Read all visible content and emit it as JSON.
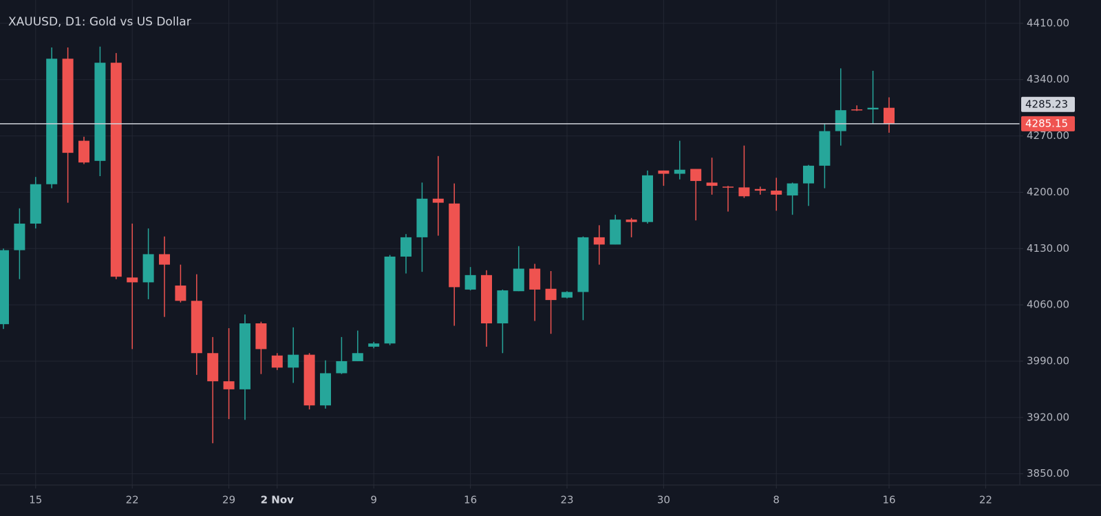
{
  "chart_data": {
    "type": "candlestick",
    "title": "XAUUSD, D1: Gold vs US Dollar",
    "categories": [
      null,
      null,
      "15",
      null,
      null,
      null,
      null,
      null,
      "22",
      null,
      null,
      null,
      null,
      null,
      "29",
      null,
      null,
      "2 Nov",
      null,
      null,
      null,
      null,
      null,
      "9",
      null,
      null,
      null,
      null,
      null,
      "16",
      null,
      null,
      null,
      null,
      null,
      "23",
      null,
      null,
      null,
      null,
      null,
      "30",
      null,
      null,
      null,
      null,
      null,
      null,
      "8",
      null,
      null,
      null,
      null,
      null,
      null,
      "16",
      null,
      null,
      null,
      null,
      null,
      "22"
    ],
    "open": [
      4036,
      4128,
      4161,
      4210,
      4366,
      4264,
      4239,
      4361,
      4094,
      4088,
      4123,
      4084,
      4065,
      4000,
      3965,
      3955,
      4037,
      3997,
      3982,
      3998,
      3935,
      3975,
      3990,
      4008,
      4012,
      4120,
      4144,
      4192,
      4186,
      4079,
      4097,
      4037,
      4077,
      4105,
      4080,
      4069,
      4076,
      4144,
      4135,
      4166,
      4163,
      4227,
      4223,
      4229,
      4212,
      4207,
      4206,
      4204,
      4202,
      4196,
      4211,
      4233,
      4276,
      4303,
      4303,
      4305,
      null,
      null,
      null,
      null,
      null,
      null
    ],
    "high": [
      4130,
      4180,
      4219,
      4380,
      4380,
      4269,
      4381,
      4373,
      4161,
      4155,
      4145,
      4110,
      4098,
      4020,
      4031,
      4048,
      4039,
      4000,
      4032,
      4000,
      3991,
      4020,
      4028,
      4014,
      4122,
      4148,
      4212,
      4245,
      4211,
      4107,
      4103,
      4079,
      4133,
      4111,
      4102,
      4077,
      4145,
      4159,
      4172,
      4168,
      4227,
      4227,
      4264,
      4229,
      4243,
      4208,
      4258,
      4207,
      4218,
      4212,
      4234,
      4285,
      4354,
      4308,
      4351,
      4318,
      null,
      null,
      null,
      null,
      null,
      null
    ],
    "low": [
      4030,
      4092,
      4155,
      4205,
      4187,
      4235,
      4220,
      4092,
      4005,
      4067,
      4045,
      4063,
      3973,
      3888,
      3918,
      3917,
      3974,
      3979,
      3963,
      3930,
      3931,
      3974,
      3990,
      4006,
      4010,
      4099,
      4101,
      4146,
      4034,
      4078,
      4008,
      4000,
      4077,
      4040,
      4024,
      4068,
      4041,
      4110,
      4135,
      4144,
      4161,
      4208,
      4216,
      4165,
      4197,
      4176,
      4193,
      4197,
      4177,
      4172,
      4183,
      4205,
      4258,
      4301,
      4285,
      4274,
      null,
      null,
      null,
      null,
      null,
      null
    ],
    "close": [
      4128,
      4161,
      4210,
      4366,
      4249,
      4237,
      4361,
      4095,
      4088,
      4123,
      4110,
      4065,
      4000,
      3965,
      3955,
      4037,
      4005,
      3982,
      3998,
      3935,
      3975,
      3990,
      4000,
      4012,
      4120,
      4144,
      4192,
      4187,
      4082,
      4097,
      4037,
      4078,
      4105,
      4079,
      4066,
      4076,
      4144,
      4135,
      4166,
      4163,
      4221,
      4223,
      4228,
      4214,
      4208,
      4206,
      4195,
      4202,
      4197,
      4211,
      4233,
      4276,
      4302,
      4302,
      4305,
      4285.15,
      null,
      null,
      null,
      null,
      null,
      null
    ],
    "up_color": "#26a69a",
    "down_color": "#ef5350",
    "ylim": [
      3836,
      4439
    ],
    "yticks": [
      {
        "value": 3850,
        "label": "3850.00"
      },
      {
        "value": 3920,
        "label": "3920.00"
      },
      {
        "value": 3990,
        "label": "3990.00"
      },
      {
        "value": 4060,
        "label": "4060.00"
      },
      {
        "value": 4130,
        "label": "4130.00"
      },
      {
        "value": 4200,
        "label": "4200.00"
      },
      {
        "value": 4270,
        "label": "4270.00"
      },
      {
        "value": 4340,
        "label": "4340.00"
      },
      {
        "value": 4410,
        "label": "4410.00"
      }
    ],
    "grid": true,
    "ask_price": {
      "value": 4285.23,
      "label": "4285.23"
    },
    "last_price": {
      "value": 4285.15,
      "label": "4285.15"
    }
  }
}
